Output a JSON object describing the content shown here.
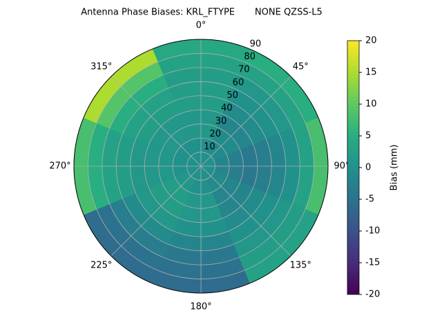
{
  "chart_data": {
    "type": "polar_heatmap",
    "title": "Antenna Phase Biases: KRL_FTYPE       NONE QZSS-L5",
    "colormap": "viridis",
    "theta": [
      0,
      45,
      90,
      135,
      180,
      225,
      270,
      315
    ],
    "r_bins": [
      0,
      10,
      20,
      30,
      40,
      50,
      60,
      70,
      80,
      90
    ],
    "values": [
      [
        0,
        0,
        1,
        1,
        2,
        2,
        2,
        3,
        4
      ],
      [
        0,
        -1,
        -1,
        -2,
        -1,
        0,
        1,
        3,
        5
      ],
      [
        0,
        -2,
        -3,
        -4,
        -3,
        -2,
        0,
        3,
        8
      ],
      [
        0,
        -1,
        -2,
        -2,
        -1,
        0,
        1,
        2,
        3
      ],
      [
        0,
        0,
        1,
        1,
        0,
        -2,
        -4,
        -5,
        -6
      ],
      [
        0,
        1,
        2,
        2,
        1,
        -1,
        -3,
        -5,
        -6
      ],
      [
        0,
        0,
        1,
        1,
        1,
        2,
        3,
        5,
        8
      ],
      [
        0,
        0,
        1,
        1,
        2,
        3,
        5,
        9,
        15
      ]
    ],
    "rlim": [
      0,
      90
    ],
    "rticks": [
      10,
      20,
      30,
      40,
      50,
      60,
      70,
      80,
      90
    ],
    "thetaticks": [
      {
        "value": 0,
        "label": "0°"
      },
      {
        "value": 45,
        "label": "45°"
      },
      {
        "value": 90,
        "label": "90°"
      },
      {
        "value": 135,
        "label": "135°"
      },
      {
        "value": 180,
        "label": "180°"
      },
      {
        "value": 225,
        "label": "225°"
      },
      {
        "value": 270,
        "label": "270°"
      },
      {
        "value": 315,
        "label": "315°"
      }
    ],
    "grid": true,
    "clim": [
      -20,
      20
    ],
    "cticks": [
      -20,
      -15,
      -10,
      -5,
      0,
      5,
      10,
      15,
      20
    ],
    "colorbar_label": "Bias (mm)"
  }
}
